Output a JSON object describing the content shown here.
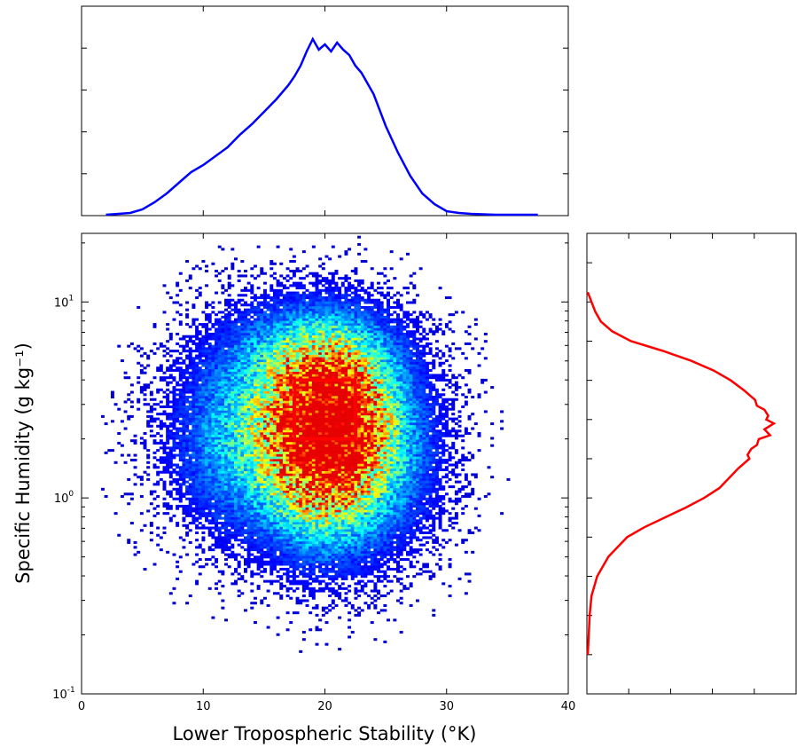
{
  "chart_data": [
    {
      "type": "heatmap",
      "panel": "main-2d-histogram",
      "xlabel": "Lower Tropospheric Stability (°K)",
      "ylabel": "Specific Humidity (g kg⁻¹)",
      "xlim": [
        0,
        40
      ],
      "ylim_log10": [
        -1,
        1.35
      ],
      "yscale": "log",
      "x_ticks": [
        0,
        10,
        20,
        30,
        40
      ],
      "y_ticks": [
        {
          "base": "10",
          "exp": "-1",
          "value": 0.1
        },
        {
          "base": "10",
          "exp": "0",
          "value": 1
        },
        {
          "base": "10",
          "exp": "1",
          "value": 10
        }
      ],
      "colormap": "jet",
      "density_cores": [
        {
          "x": 20.5,
          "log10_y": 0.45,
          "sx": 3.3,
          "sy": 0.24,
          "weight": 1.0
        },
        {
          "x": 19.5,
          "log10_y": 0.1,
          "sx": 3.0,
          "sy": 0.26,
          "weight": 0.65
        },
        {
          "x": 13.5,
          "log10_y": 0.3,
          "sx": 3.8,
          "sy": 0.3,
          "weight": 0.45
        },
        {
          "x": 24.0,
          "log10_y": 0.2,
          "sx": 3.5,
          "sy": 0.3,
          "weight": 0.4
        },
        {
          "x": 19.0,
          "log10_y": 0.75,
          "sx": 4.5,
          "sy": 0.18,
          "weight": 0.35
        }
      ],
      "highlight_box": {
        "x": [
          17.5,
          22.5
        ],
        "y": [
          2,
          4
        ],
        "color": "#ff0000"
      }
    },
    {
      "type": "line",
      "panel": "top-marginal",
      "description_axis": "x marginal of Lower Tropospheric Stability",
      "xlim": [
        0,
        40
      ],
      "color": "#0000ff",
      "x": [
        2,
        4,
        5,
        6,
        7,
        8,
        9,
        10,
        11,
        12,
        13,
        14,
        15,
        16,
        17,
        17.5,
        18,
        18.5,
        19,
        19.5,
        20,
        20.5,
        21,
        21.5,
        22,
        22.5,
        23,
        24,
        25,
        26,
        27,
        28,
        29,
        30,
        31,
        32,
        34,
        37.5
      ],
      "y": [
        0.0,
        0.01,
        0.03,
        0.07,
        0.12,
        0.18,
        0.24,
        0.28,
        0.33,
        0.38,
        0.45,
        0.51,
        0.58,
        0.65,
        0.73,
        0.78,
        0.84,
        0.92,
        0.99,
        0.93,
        0.96,
        0.92,
        0.97,
        0.93,
        0.9,
        0.84,
        0.8,
        0.68,
        0.5,
        0.35,
        0.22,
        0.12,
        0.06,
        0.02,
        0.01,
        0.005,
        0.0,
        0.0
      ]
    },
    {
      "type": "line",
      "panel": "right-marginal",
      "description_axis": "y marginal of Specific Humidity (log scale)",
      "color": "#ff0000",
      "ylim_log10": [
        -1,
        1.35
      ],
      "log10_y": [
        1.05,
        1.0,
        0.95,
        0.9,
        0.85,
        0.8,
        0.75,
        0.7,
        0.65,
        0.6,
        0.55,
        0.5,
        0.47,
        0.45,
        0.42,
        0.4,
        0.38,
        0.35,
        0.32,
        0.3,
        0.27,
        0.25,
        0.22,
        0.2,
        0.15,
        0.1,
        0.05,
        0.0,
        -0.05,
        -0.1,
        -0.15,
        -0.2,
        -0.3,
        -0.4,
        -0.5,
        -0.6,
        -0.7,
        -0.8
      ],
      "x": [
        0.0,
        0.02,
        0.04,
        0.07,
        0.13,
        0.23,
        0.4,
        0.55,
        0.67,
        0.76,
        0.83,
        0.89,
        0.9,
        0.94,
        0.96,
        0.95,
        0.99,
        0.94,
        0.97,
        0.91,
        0.9,
        0.87,
        0.85,
        0.86,
        0.8,
        0.75,
        0.7,
        0.62,
        0.52,
        0.41,
        0.3,
        0.21,
        0.11,
        0.05,
        0.02,
        0.01,
        0.005,
        0.0
      ]
    }
  ]
}
